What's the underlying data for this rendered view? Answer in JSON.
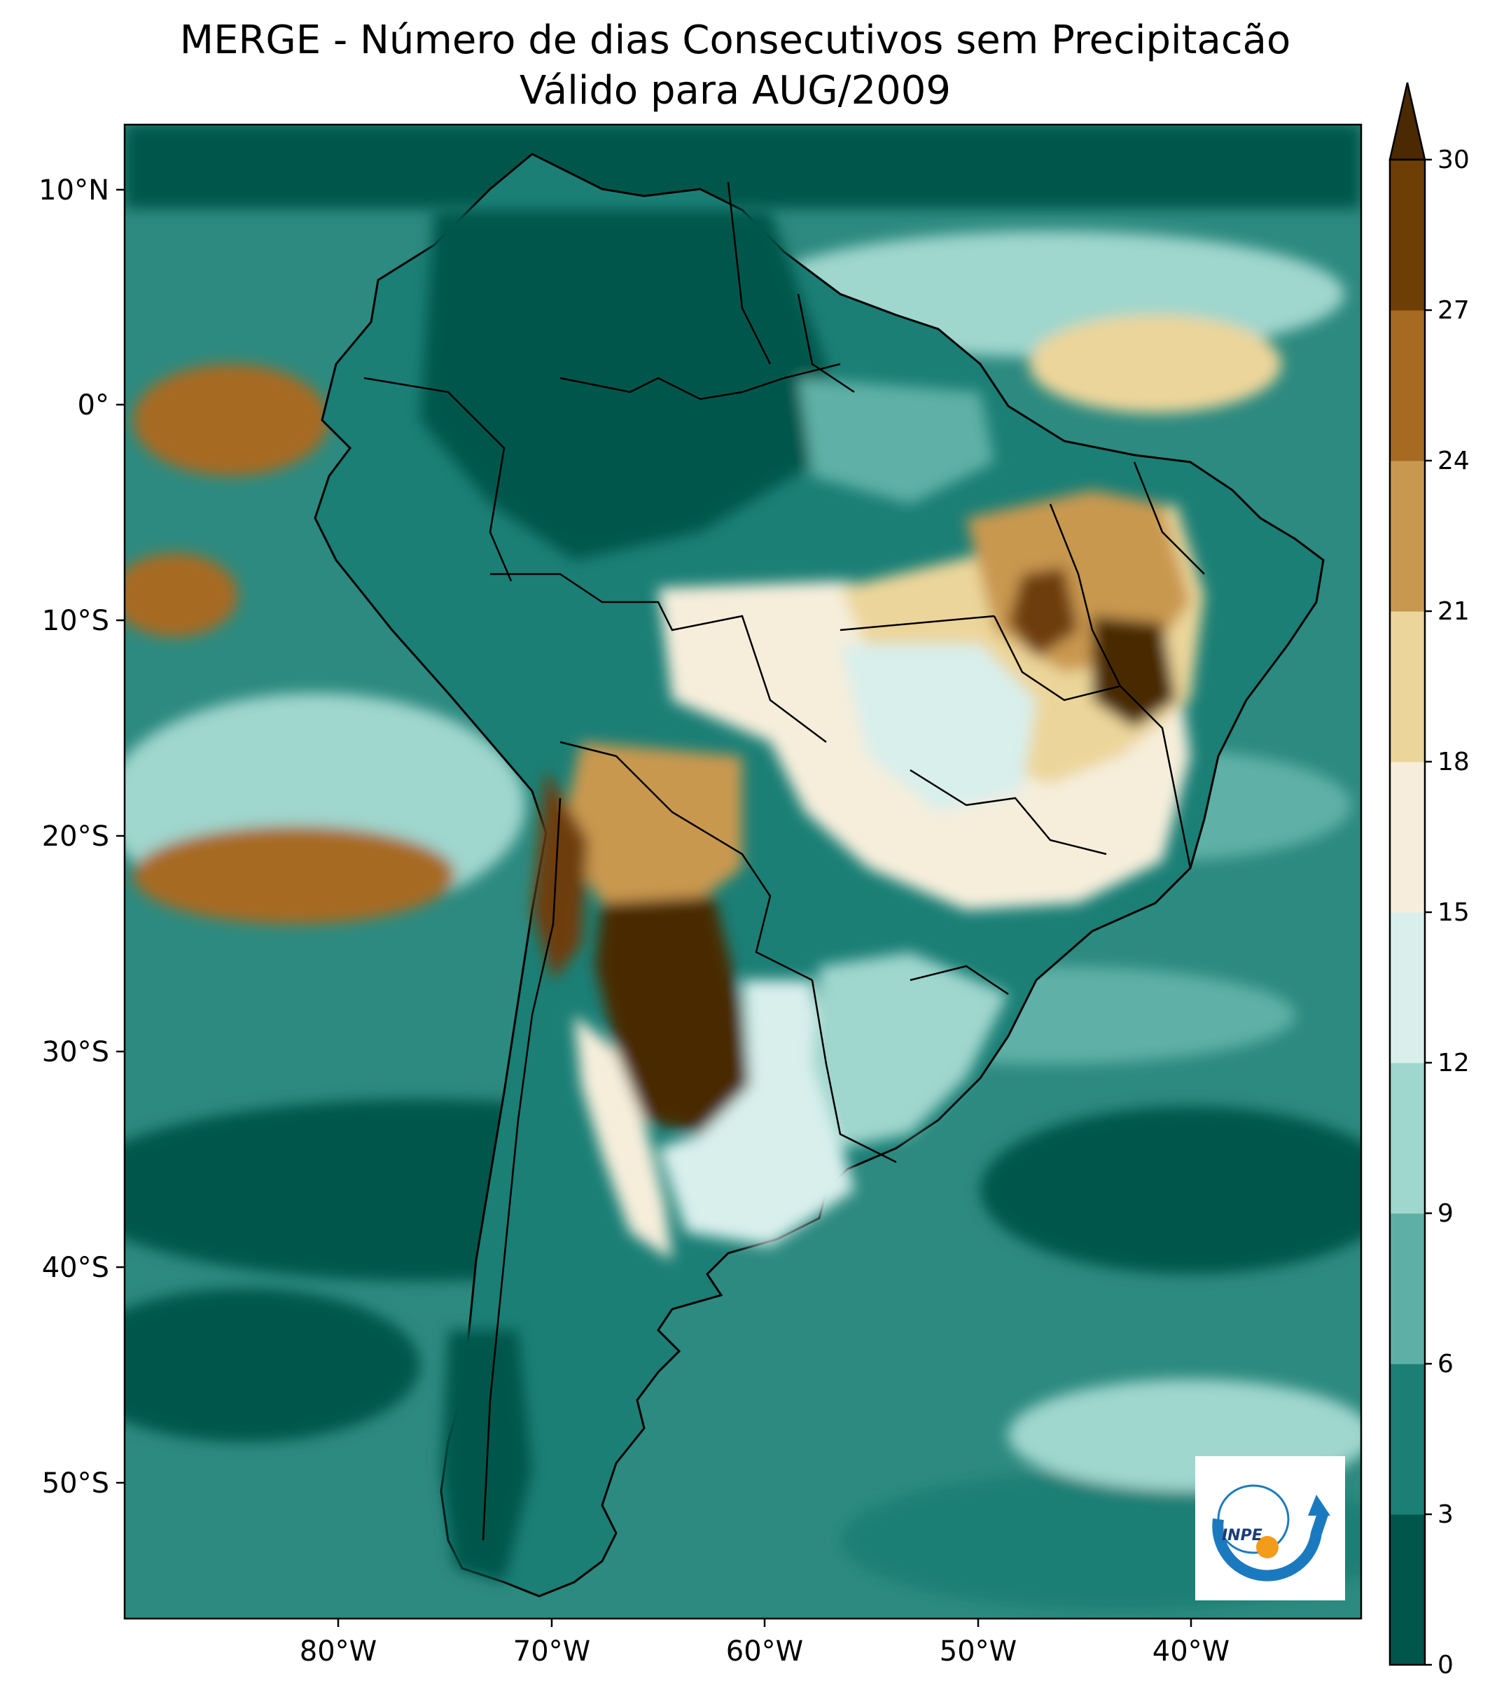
{
  "title": {
    "line1": "MERGE - Número de dias Consecutivos sem Precipitacão",
    "line2": "Válido para AUG/2009"
  },
  "map": {
    "lat_ticks": [
      "10°N",
      "0°",
      "10°S",
      "20°S",
      "30°S",
      "40°S",
      "50°S"
    ],
    "lon_ticks": [
      "80°W",
      "70°W",
      "60°W",
      "50°W",
      "40°W"
    ],
    "extent": {
      "lon": [
        -90,
        -32
      ],
      "lat": [
        -57,
        13
      ]
    },
    "ocean_color": "#2d8a80"
  },
  "colorbar": {
    "levels": [
      "0",
      "3",
      "6",
      "9",
      "12",
      "15",
      "18",
      "21",
      "24",
      "27",
      "30"
    ],
    "colors": [
      "#01564b",
      "#1b7f76",
      "#5eb0a6",
      "#9fd6cd",
      "#d8efec",
      "#f6eedb",
      "#ecd59a",
      "#c99850",
      "#a76a22",
      "#6e3e07"
    ],
    "extend_color": "#4a2903"
  },
  "logo": {
    "text": "INPE"
  }
}
